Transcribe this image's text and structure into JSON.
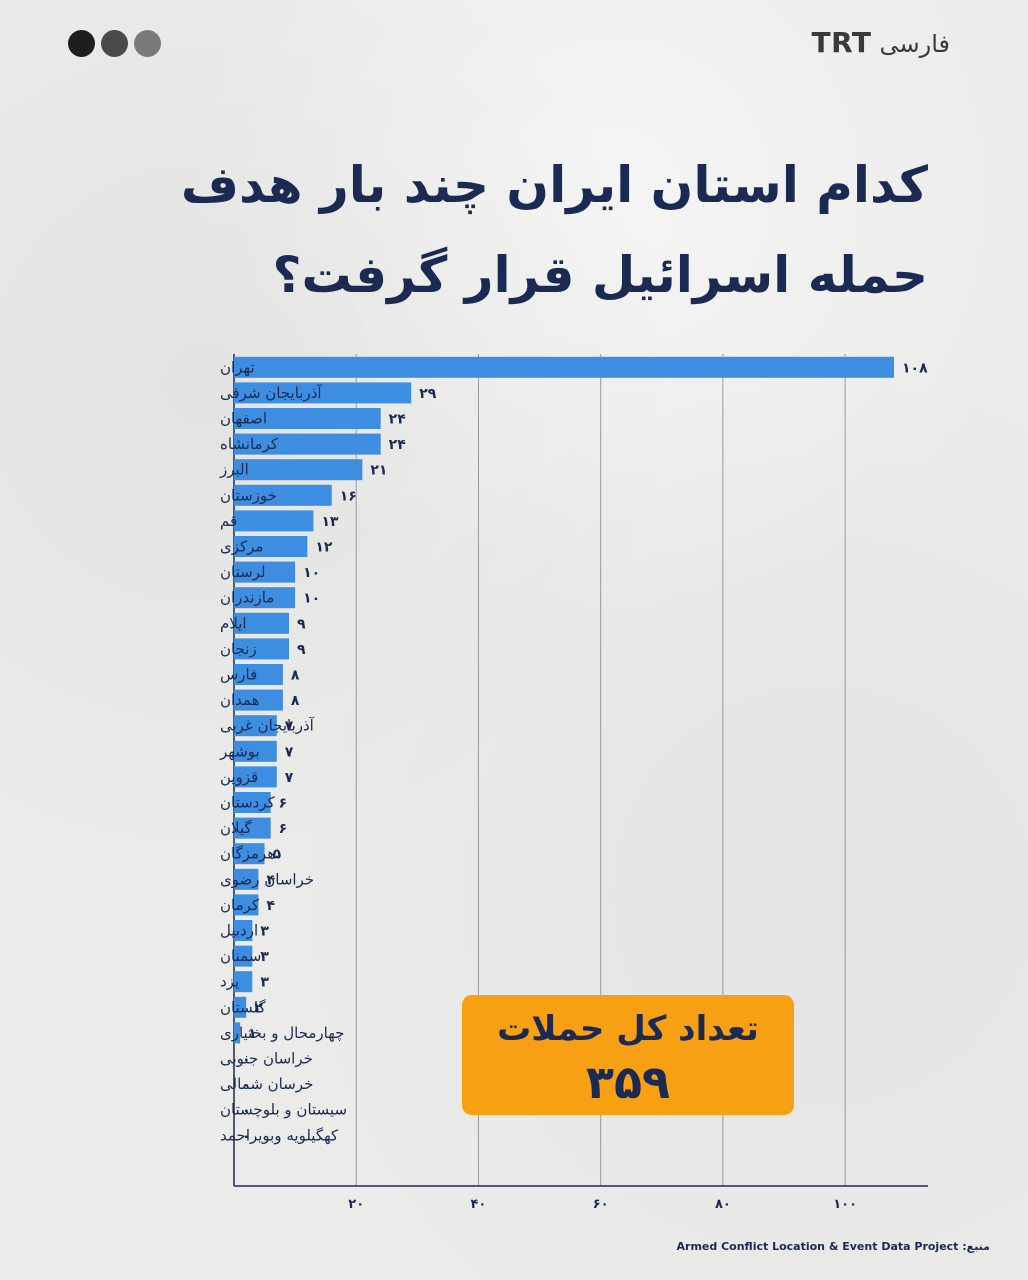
{
  "header": {
    "dots_colors": [
      "#1e1e1e",
      "#4a4a4a",
      "#7a7a7a"
    ],
    "brand_latin": "TRT",
    "brand_persian": "فارسی",
    "title_line1": "کدام استان ایران چند بار هدف",
    "title_line2": "حمله اسرائیل قرار گرفت؟"
  },
  "total": {
    "label": "تعداد کل حملات",
    "value": "۳۵۹"
  },
  "source": {
    "label": "منبع:",
    "org": "Armed Conflict Location & Event Data Project"
  },
  "colors": {
    "bar": "#3d8ee0",
    "axis": "#1b2a52",
    "grid": "#9a9a9a",
    "text": "#1b2a52",
    "total_box": "#f7a013"
  },
  "chart_data": {
    "type": "bar",
    "orientation": "horizontal",
    "xlim": [
      0,
      108
    ],
    "grid": true,
    "x_ticks": [
      20,
      40,
      60,
      80,
      100
    ],
    "x_tick_labels": [
      "۲۰",
      "۴۰",
      "۶۰",
      "۸۰",
      "۱۰۰"
    ],
    "categories": [
      "تهران",
      "آذربایجان شرقی",
      "اصفهان",
      "کرمانشاه",
      "البرز",
      "خوزستان",
      "قم",
      "مرکزی",
      "لرستان",
      "مازندران",
      "ایلام",
      "زنجان",
      "فارس",
      "همدان",
      "آذربایجان غربی",
      "بوشهر",
      "قزوین",
      "کردستان",
      "گیلان",
      "هرمزگان",
      "خراسان رضوی",
      "کرمان",
      "اردبیل",
      "سمنان",
      "یزد",
      "گلستان",
      "چهارمحال و بختیاری",
      "خراسان جنوبی",
      "خرسان شمالی",
      "سیستان و بلوچستان",
      "کهگیلویه وبویراحمد"
    ],
    "values": [
      108,
      29,
      24,
      24,
      21,
      16,
      13,
      12,
      10,
      10,
      9,
      9,
      8,
      8,
      7,
      7,
      7,
      6,
      6,
      5,
      4,
      4,
      3,
      3,
      3,
      2,
      1,
      0,
      0,
      0,
      0
    ],
    "value_labels": [
      "۱۰۸",
      "۲۹",
      "۲۴",
      "۲۴",
      "۲۱",
      "۱۶",
      "۱۳",
      "۱۲",
      "۱۰",
      "۱۰",
      "۹",
      "۹",
      "۸",
      "۸",
      "۷",
      "۷",
      "۷",
      "۶",
      "۶",
      "۵",
      "۴",
      "۴",
      "۳",
      "۳",
      "۳",
      "۲",
      "۱",
      "۰",
      "۰",
      "۰",
      "۰"
    ]
  }
}
